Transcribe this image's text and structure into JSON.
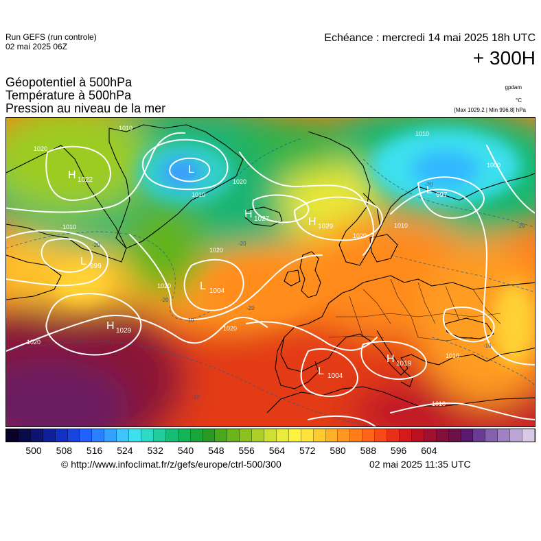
{
  "header": {
    "run_line1": "Run GEFS (run controle)",
    "run_line2": "02 mai 2025 06Z",
    "echeance": "Echéance : mercredi 14 mai 2025 18h UTC",
    "lead": "+ 300H",
    "titles": [
      "Géopotentiel à 500hPa",
      "Température à 500hPa",
      "Pression au niveau de la mer"
    ],
    "unit_gpdam": "gpdam",
    "unit_celsius": "°C",
    "unit_pressure": "[Max 1029.2 | Min 996.8] hPa"
  },
  "map": {
    "pressure_centers": [
      {
        "type": "H",
        "value": "1022"
      },
      {
        "type": "L",
        "value": ""
      },
      {
        "type": "H",
        "value": "1027"
      },
      {
        "type": "H",
        "value": "1029"
      },
      {
        "type": "L",
        "value": "999"
      },
      {
        "type": "L",
        "value": "1004"
      },
      {
        "type": "H",
        "value": "1029"
      },
      {
        "type": "L",
        "value": "1004"
      },
      {
        "type": "H",
        "value": "1019"
      },
      {
        "type": "L",
        "value": "997"
      }
    ],
    "isobar_labels": [
      "1010",
      "1020",
      "1010",
      "1010",
      "1020",
      "1020",
      "1020",
      "1020",
      "1020",
      "1010",
      "1000",
      "1010",
      "1010",
      "1010",
      "1020"
    ],
    "temperature_labels": [
      "-20",
      "-20",
      "-20",
      "-10",
      "-20",
      "-10",
      "-10",
      "-20",
      "-20"
    ]
  },
  "colorbar": {
    "colors": [
      "#0a0028",
      "#0a0a4a",
      "#0d1373",
      "#101f9a",
      "#1230c2",
      "#1844e0",
      "#2060ff",
      "#2a80ff",
      "#33a3ff",
      "#3fc4ff",
      "#3ee0ef",
      "#30d9c4",
      "#22cc9c",
      "#17bd76",
      "#14b356",
      "#1aa53a",
      "#2a9a24",
      "#4aa81c",
      "#6ab51a",
      "#8cc21e",
      "#aed12a",
      "#cfe030",
      "#e9ec3a",
      "#fef240",
      "#ffe23a",
      "#ffcb30",
      "#ffb128",
      "#ff9720",
      "#ff7d1a",
      "#ff6418",
      "#f84a18",
      "#e83018",
      "#d41a1a",
      "#bb1020",
      "#a01030",
      "#82103a",
      "#6a1248",
      "#5a1a70",
      "#6b3a94",
      "#8560ac",
      "#a082c2",
      "#bda6d6",
      "#d9c8e6"
    ],
    "tick_labels": [
      "500",
      "508",
      "516",
      "524",
      "532",
      "540",
      "548",
      "556",
      "564",
      "572",
      "580",
      "588",
      "596",
      "604"
    ]
  },
  "footer": {
    "source": "© http://www.infoclimat.fr/z/gefs/europe/ctrl-500/300",
    "generated": "02 mai 2025 11:35 UTC"
  }
}
